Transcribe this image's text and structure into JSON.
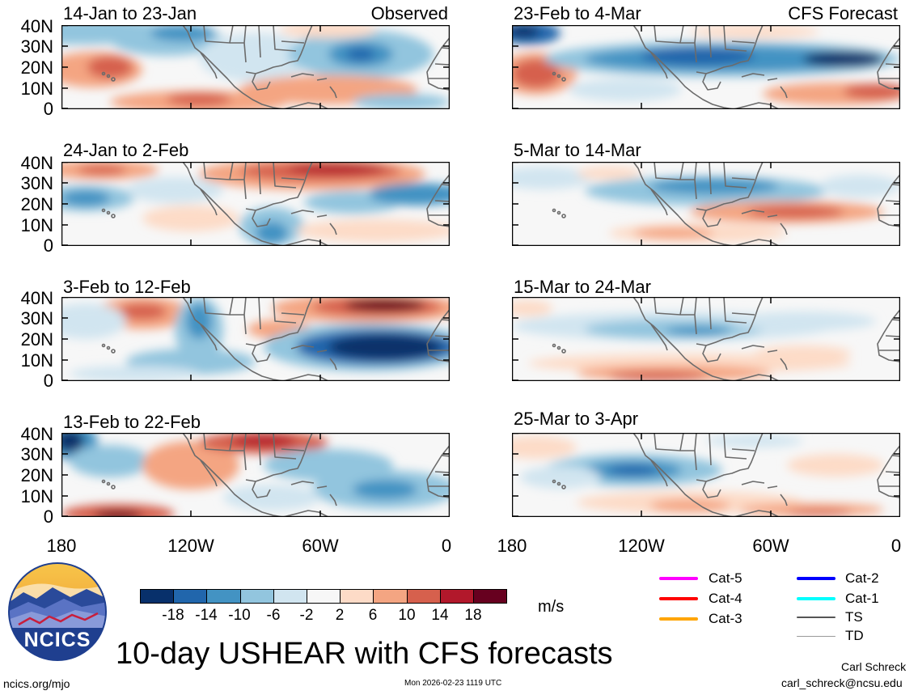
{
  "observed_label": "Observed",
  "forecast_label": "CFS Forecast",
  "panels_left": [
    {
      "title": "14-Jan to 23-Jan"
    },
    {
      "title": "24-Jan to 2-Feb"
    },
    {
      "title": "3-Feb to 12-Feb"
    },
    {
      "title": "13-Feb to 22-Feb"
    }
  ],
  "panels_right": [
    {
      "title": "23-Feb to 4-Mar"
    },
    {
      "title": "5-Mar to 14-Mar"
    },
    {
      "title": "15-Mar to 24-Mar"
    },
    {
      "title": "25-Mar to 3-Apr"
    }
  ],
  "lat_labels": [
    "40N",
    "30N",
    "20N",
    "10N",
    "0"
  ],
  "lon_labels": [
    "180",
    "120W",
    "60W",
    "0"
  ],
  "colorbar": {
    "labels": [
      "-18",
      "-14",
      "-10",
      "-6",
      "-2",
      "2",
      "6",
      "10",
      "14",
      "18"
    ],
    "units": "m/s",
    "colors": [
      "#08306b",
      "#2166ac",
      "#4393c3",
      "#92c5de",
      "#d1e5f0",
      "#f7f7f7",
      "#fddbc7",
      "#f4a582",
      "#d6604d",
      "#b2182b",
      "#67001f"
    ]
  },
  "legend": [
    {
      "label": "Cat-5",
      "color": "#ff00ff"
    },
    {
      "label": "Cat-4",
      "color": "#ff0000"
    },
    {
      "label": "Cat-3",
      "color": "#ffa500"
    },
    {
      "label": "Cat-2",
      "color": "#0000ff"
    },
    {
      "label": "Cat-1",
      "color": "#00ffff"
    },
    {
      "label": "TS",
      "color": "#555555"
    },
    {
      "label": "TD",
      "color": "#999999"
    }
  ],
  "logo_text": "NCICS",
  "main_title": "10-day USHEAR with CFS forecasts",
  "footer": {
    "url": "ncics.org/mjo",
    "timestamp": "Mon 2026-02-23 1119 UTC",
    "author": "Carl Schreck",
    "email": "carl_schreck@ncsu.edu"
  }
}
